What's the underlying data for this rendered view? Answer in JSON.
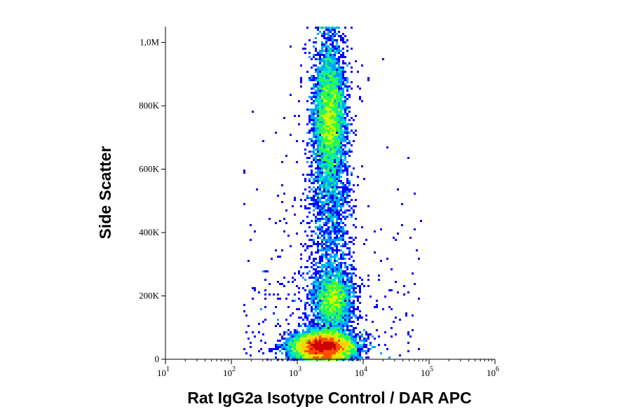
{
  "chart_data": {
    "type": "scatter",
    "style": "flow-cytometry density dot plot",
    "title": "",
    "xlabel": "Rat IgG2a Isotype Control / DAR APC",
    "ylabel": "Side Scatter",
    "x_scale": "log",
    "xlim": [
      10,
      1000000
    ],
    "x_ticks": [
      {
        "value": 10,
        "base": "10",
        "exp": "1"
      },
      {
        "value": 100,
        "base": "10",
        "exp": "2"
      },
      {
        "value": 1000,
        "base": "10",
        "exp": "3"
      },
      {
        "value": 10000,
        "base": "10",
        "exp": "4"
      },
      {
        "value": 100000,
        "base": "10",
        "exp": "5"
      },
      {
        "value": 1000000,
        "base": "10",
        "exp": "6"
      }
    ],
    "y_scale": "linear",
    "ylim": [
      0,
      1050000
    ],
    "y_ticks": [
      {
        "value": 0,
        "label": "0"
      },
      {
        "value": 200000,
        "label": "200K"
      },
      {
        "value": 400000,
        "label": "400K"
      },
      {
        "value": 600000,
        "label": "600K"
      },
      {
        "value": 800000,
        "label": "800K"
      },
      {
        "value": 1000000,
        "label": "1,0M"
      }
    ],
    "grid": false,
    "legend": "none",
    "density_colormap": [
      "#0000ff",
      "#00a0ff",
      "#00e8c0",
      "#30ff40",
      "#c8ff00",
      "#ffd000",
      "#ff5000",
      "#d00000"
    ],
    "populations": [
      {
        "name": "",
        "x_center": 2500,
        "y_center": 40000,
        "x_spread_log10": 0.22,
        "y_spread": 22000,
        "relative_count": 1.0
      },
      {
        "name": "",
        "x_center": 3500,
        "y_center": 190000,
        "x_spread_log10": 0.14,
        "y_spread": 45000,
        "relative_count": 0.22
      },
      {
        "name": "",
        "x_center": 3100,
        "y_center": 760000,
        "x_spread_log10": 0.12,
        "y_spread": 120000,
        "relative_count": 0.55
      }
    ]
  }
}
